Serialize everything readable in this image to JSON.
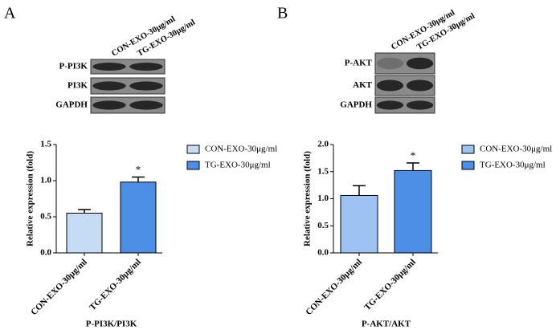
{
  "chart_data": [
    {
      "type": "bar",
      "panel": "A",
      "blot_rows": [
        "P-PI3K",
        "PI3K",
        "GAPDH"
      ],
      "categories": [
        "CON-EXO-30μg/ml",
        "TG-EXO-30μg/ml"
      ],
      "values": [
        0.55,
        0.98
      ],
      "errors": [
        0.05,
        0.07
      ],
      "significance": [
        null,
        "*"
      ],
      "colors": [
        "#c6dcf5",
        "#4b8fe6"
      ],
      "ylabel": "Relative expression (fold)",
      "xlabel": "P-PI3K/PI3K",
      "ylim": [
        0,
        1.5
      ],
      "yticks": [
        {
          "value": 0,
          "label": "0.0"
        },
        {
          "value": 0.5,
          "label": "0.5"
        },
        {
          "value": 1,
          "label": "1.0"
        },
        {
          "value": 1.5,
          "label": "1.5"
        }
      ]
    },
    {
      "type": "bar",
      "panel": "B",
      "blot_rows": [
        "P-AKT",
        "AKT",
        "GAPDH"
      ],
      "categories": [
        "CON-EXO-30μg/ml",
        "TG-EXO-30μg/ml"
      ],
      "values": [
        1.06,
        1.52
      ],
      "errors": [
        0.18,
        0.14
      ],
      "significance": [
        null,
        "*"
      ],
      "colors": [
        "#9cc3f2",
        "#4b8fe6"
      ],
      "ylabel": "Relative expression (fold)",
      "xlabel": "P-AKT/AKT",
      "ylim": [
        0,
        2.0
      ],
      "yticks": [
        {
          "value": 0,
          "label": "0.0"
        },
        {
          "value": 0.5,
          "label": "0.5"
        },
        {
          "value": 1,
          "label": "1.0"
        },
        {
          "value": 1.5,
          "label": "1.5"
        },
        {
          "value": 2,
          "label": "2.0"
        }
      ]
    }
  ]
}
